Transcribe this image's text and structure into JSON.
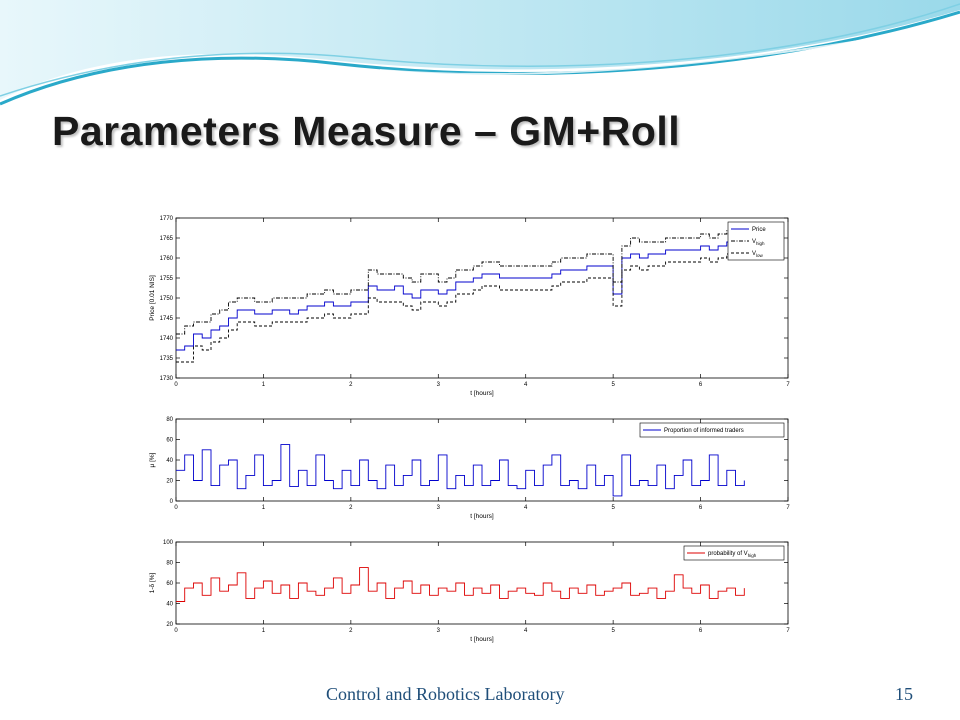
{
  "slide": {
    "title": "Parameters Measure – GM+Roll",
    "footer": "Control and Robotics Laboratory",
    "page_number": "15"
  },
  "colors": {
    "title": "#1a1a1a",
    "footer": "#1f4e79",
    "wave_light": "#bfe8f2",
    "wave_dark": "#2aa9c9",
    "price_line": "#0000cc",
    "mu_line": "#0000cc",
    "probability_line": "#dd0000"
  },
  "chart_data": [
    {
      "type": "line",
      "xlabel": "t [hours]",
      "ylabel": "Price [0.01 NIS]",
      "xlim": [
        0,
        7
      ],
      "ylim": [
        1730,
        1770
      ],
      "xticks": [
        0,
        1,
        2,
        3,
        4,
        5,
        6,
        7
      ],
      "yticks": [
        1730,
        1735,
        1740,
        1745,
        1750,
        1755,
        1760,
        1765,
        1770
      ],
      "legend_position": "top-right",
      "x": [
        0,
        0.1,
        0.2,
        0.3,
        0.4,
        0.5,
        0.6,
        0.7,
        0.8,
        0.9,
        1.0,
        1.1,
        1.2,
        1.3,
        1.4,
        1.5,
        1.6,
        1.7,
        1.8,
        1.9,
        2.0,
        2.1,
        2.2,
        2.3,
        2.4,
        2.5,
        2.6,
        2.7,
        2.8,
        2.9,
        3.0,
        3.1,
        3.2,
        3.3,
        3.4,
        3.5,
        3.6,
        3.7,
        3.8,
        3.9,
        4.0,
        4.1,
        4.2,
        4.3,
        4.4,
        4.5,
        4.6,
        4.7,
        4.8,
        4.9,
        5.0,
        5.1,
        5.2,
        5.3,
        5.4,
        5.5,
        5.6,
        5.7,
        5.8,
        5.9,
        6.0,
        6.1,
        6.2,
        6.3,
        6.4,
        6.5
      ],
      "series": [
        {
          "name": "Price",
          "style": "solid",
          "values": [
            1737,
            1738,
            1741,
            1740,
            1742,
            1743,
            1745,
            1747,
            1747,
            1746,
            1746,
            1747,
            1747,
            1746,
            1747,
            1748,
            1748,
            1749,
            1748,
            1748,
            1749,
            1749,
            1753,
            1752,
            1752,
            1753,
            1751,
            1750,
            1752,
            1752,
            1751,
            1752,
            1754,
            1754,
            1755,
            1756,
            1756,
            1755,
            1755,
            1755,
            1755,
            1755,
            1755,
            1756,
            1757,
            1757,
            1757,
            1758,
            1758,
            1758,
            1751,
            1760,
            1761,
            1760,
            1761,
            1761,
            1762,
            1762,
            1762,
            1762,
            1763,
            1762,
            1763,
            1764,
            1764,
            1765
          ]
        },
        {
          "name": "V_high",
          "style": "dash-dot",
          "values": [
            1741,
            1743,
            1744,
            1744,
            1746,
            1747,
            1749,
            1750,
            1750,
            1749,
            1749,
            1750,
            1750,
            1750,
            1750,
            1751,
            1751,
            1752,
            1751,
            1751,
            1752,
            1752,
            1757,
            1756,
            1756,
            1756,
            1755,
            1754,
            1756,
            1756,
            1754,
            1755,
            1757,
            1757,
            1758,
            1759,
            1759,
            1758,
            1758,
            1758,
            1758,
            1758,
            1758,
            1759,
            1760,
            1760,
            1760,
            1761,
            1761,
            1761,
            1754,
            1763,
            1765,
            1764,
            1764,
            1764,
            1765,
            1765,
            1765,
            1765,
            1766,
            1765,
            1766,
            1767,
            1767,
            1767
          ]
        },
        {
          "name": "V_low",
          "style": "dashed",
          "values": [
            1734,
            1734,
            1738,
            1737,
            1739,
            1740,
            1742,
            1744,
            1744,
            1743,
            1743,
            1744,
            1744,
            1744,
            1744,
            1745,
            1745,
            1746,
            1745,
            1745,
            1746,
            1746,
            1750,
            1749,
            1749,
            1749,
            1748,
            1747,
            1749,
            1749,
            1748,
            1749,
            1751,
            1751,
            1752,
            1753,
            1753,
            1752,
            1752,
            1752,
            1752,
            1752,
            1752,
            1753,
            1754,
            1754,
            1754,
            1755,
            1755,
            1755,
            1748,
            1757,
            1758,
            1757,
            1758,
            1758,
            1759,
            1759,
            1759,
            1759,
            1760,
            1759,
            1760,
            1761,
            1761,
            1762
          ]
        }
      ]
    },
    {
      "type": "line",
      "xlabel": "t [hours]",
      "ylabel": "μ [%]",
      "xlim": [
        0,
        7
      ],
      "ylim": [
        0,
        80
      ],
      "xticks": [
        0,
        1,
        2,
        3,
        4,
        5,
        6,
        7
      ],
      "yticks": [
        0,
        20,
        40,
        60,
        80
      ],
      "legend_position": "top-right",
      "x": [
        0,
        0.1,
        0.2,
        0.3,
        0.4,
        0.5,
        0.6,
        0.7,
        0.8,
        0.9,
        1.0,
        1.1,
        1.2,
        1.3,
        1.4,
        1.5,
        1.6,
        1.7,
        1.8,
        1.9,
        2.0,
        2.1,
        2.2,
        2.3,
        2.4,
        2.5,
        2.6,
        2.7,
        2.8,
        2.9,
        3.0,
        3.1,
        3.2,
        3.3,
        3.4,
        3.5,
        3.6,
        3.7,
        3.8,
        3.9,
        4.0,
        4.1,
        4.2,
        4.3,
        4.4,
        4.5,
        4.6,
        4.7,
        4.8,
        4.9,
        5.0,
        5.1,
        5.2,
        5.3,
        5.4,
        5.5,
        5.6,
        5.7,
        5.8,
        5.9,
        6.0,
        6.1,
        6.2,
        6.3,
        6.4,
        6.5
      ],
      "series": [
        {
          "name": "Proportion of informed traders",
          "values": [
            30,
            45,
            20,
            50,
            15,
            35,
            40,
            12,
            25,
            45,
            15,
            20,
            55,
            14,
            30,
            15,
            45,
            20,
            12,
            30,
            15,
            40,
            20,
            12,
            35,
            15,
            25,
            40,
            15,
            20,
            45,
            12,
            25,
            15,
            35,
            15,
            20,
            40,
            15,
            12,
            30,
            15,
            35,
            45,
            15,
            20,
            12,
            35,
            15,
            25,
            5,
            45,
            15,
            20,
            15,
            35,
            12,
            25,
            40,
            15,
            20,
            45,
            15,
            30,
            15,
            20
          ]
        }
      ]
    },
    {
      "type": "line",
      "xlabel": "t [hours]",
      "ylabel": "1-δ [%]",
      "xlim": [
        0,
        7
      ],
      "ylim": [
        20,
        100
      ],
      "xticks": [
        0,
        1,
        2,
        3,
        4,
        5,
        6,
        7
      ],
      "yticks": [
        20,
        40,
        60,
        80,
        100
      ],
      "legend_position": "top-right",
      "x": [
        0,
        0.1,
        0.2,
        0.3,
        0.4,
        0.5,
        0.6,
        0.7,
        0.8,
        0.9,
        1.0,
        1.1,
        1.2,
        1.3,
        1.4,
        1.5,
        1.6,
        1.7,
        1.8,
        1.9,
        2.0,
        2.1,
        2.2,
        2.3,
        2.4,
        2.5,
        2.6,
        2.7,
        2.8,
        2.9,
        3.0,
        3.1,
        3.2,
        3.3,
        3.4,
        3.5,
        3.6,
        3.7,
        3.8,
        3.9,
        4.0,
        4.1,
        4.2,
        4.3,
        4.4,
        4.5,
        4.6,
        4.7,
        4.8,
        4.9,
        5.0,
        5.1,
        5.2,
        5.3,
        5.4,
        5.5,
        5.6,
        5.7,
        5.8,
        5.9,
        6.0,
        6.1,
        6.2,
        6.3,
        6.4,
        6.5
      ],
      "series": [
        {
          "name": "probability of V_high",
          "values": [
            42,
            55,
            60,
            48,
            65,
            52,
            58,
            70,
            45,
            55,
            62,
            50,
            58,
            45,
            60,
            52,
            48,
            55,
            65,
            50,
            58,
            75,
            52,
            60,
            45,
            55,
            62,
            50,
            58,
            48,
            55,
            52,
            60,
            48,
            55,
            50,
            58,
            45,
            52,
            55,
            50,
            48,
            60,
            52,
            45,
            55,
            50,
            58,
            48,
            52,
            55,
            60,
            48,
            50,
            55,
            45,
            52,
            68,
            55,
            50,
            58,
            45,
            52,
            55,
            48,
            55
          ]
        }
      ]
    }
  ]
}
